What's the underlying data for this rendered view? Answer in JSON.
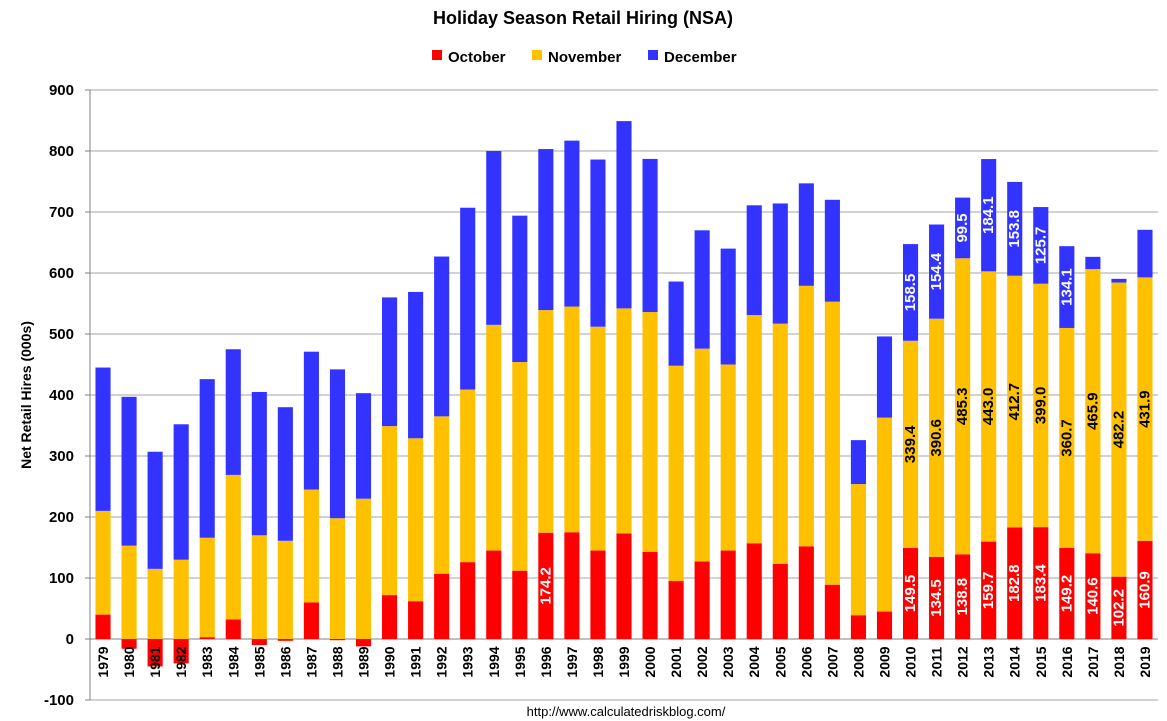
{
  "chart_data": {
    "type": "bar",
    "stacked": true,
    "title": "Holiday Season Retail Hiring (NSA)",
    "ylabel": "Net Retail Hires (000s)",
    "xlabel": "",
    "ylim": [
      -100,
      900
    ],
    "yticks": [
      900,
      800,
      700,
      600,
      500,
      400,
      300,
      200,
      100,
      0,
      -100
    ],
    "grid": true,
    "legend_position": "top-center",
    "source": "http://www.calculatedriskblog.com/",
    "categories": [
      "1979",
      "1980",
      "1981",
      "1982",
      "1983",
      "1984",
      "1985",
      "1986",
      "1987",
      "1988",
      "1989",
      "1990",
      "1991",
      "1992",
      "1993",
      "1994",
      "1995",
      "1996",
      "1997",
      "1998",
      "1999",
      "2000",
      "2001",
      "2002",
      "2003",
      "2004",
      "2005",
      "2006",
      "2007",
      "2008",
      "2009",
      "2010",
      "2011",
      "2012",
      "2013",
      "2014",
      "2015",
      "2016",
      "2017",
      "2018",
      "2019"
    ],
    "series": [
      {
        "name": "October",
        "color": "#ff0000",
        "values": [
          40,
          -16,
          -45,
          -40,
          3,
          32,
          -10,
          -3,
          60,
          -2,
          -12,
          72,
          62,
          107,
          126,
          145,
          112,
          174.2,
          175,
          145,
          173,
          143,
          95,
          127,
          145,
          157,
          123,
          152,
          89,
          39,
          45,
          149.5,
          134.5,
          138.8,
          159.7,
          182.8,
          183.4,
          149.2,
          140.6,
          102.2,
          160.9
        ],
        "labels": [
          null,
          null,
          null,
          null,
          null,
          null,
          null,
          null,
          null,
          null,
          null,
          null,
          null,
          null,
          null,
          null,
          null,
          "174.2",
          null,
          null,
          null,
          null,
          null,
          null,
          null,
          null,
          null,
          null,
          null,
          null,
          null,
          "149.5",
          "134.5",
          "138.8",
          "159.7",
          "182.8",
          "183.4",
          "149.2",
          "140.6",
          "102.2",
          "160.9"
        ]
      },
      {
        "name": "November",
        "color": "#ffc000",
        "values": [
          170,
          153,
          115,
          130,
          163,
          237,
          170,
          161,
          185,
          198,
          230,
          277,
          267,
          258,
          283,
          370,
          342,
          365,
          370,
          367,
          369,
          393,
          353,
          349,
          305,
          374,
          394,
          427,
          464,
          215,
          318,
          339.4,
          390.6,
          485.3,
          443.0,
          412.7,
          399.0,
          360.7,
          465.9,
          482.2,
          431.9
        ],
        "labels": [
          null,
          null,
          null,
          null,
          null,
          null,
          null,
          null,
          null,
          null,
          null,
          null,
          null,
          null,
          null,
          null,
          null,
          null,
          null,
          null,
          null,
          null,
          null,
          null,
          null,
          null,
          null,
          null,
          null,
          null,
          null,
          "339.4",
          "390.6",
          "485.3",
          "443.0",
          "412.7",
          "399.0",
          "360.7",
          "465.9",
          "482.2",
          "431.9"
        ]
      },
      {
        "name": "December",
        "color": "#3333ff",
        "values": [
          235,
          244,
          192,
          222,
          260,
          206,
          235,
          219,
          226,
          244,
          173,
          211,
          240,
          262,
          298,
          285,
          240,
          264,
          272,
          274,
          307,
          251,
          138,
          194,
          190,
          180,
          197,
          168,
          167,
          72,
          133,
          158.5,
          154.4,
          99.5,
          184.1,
          153.8,
          125.7,
          134.1,
          20,
          6,
          78
        ],
        "labels": [
          null,
          null,
          null,
          null,
          null,
          null,
          null,
          null,
          null,
          null,
          null,
          null,
          null,
          null,
          null,
          null,
          null,
          null,
          null,
          null,
          null,
          null,
          null,
          null,
          null,
          null,
          null,
          null,
          null,
          null,
          null,
          "158.5",
          "154.4",
          "99.5",
          "184.1",
          "153.8",
          "125.7",
          "134.1",
          null,
          null,
          null
        ]
      }
    ]
  }
}
